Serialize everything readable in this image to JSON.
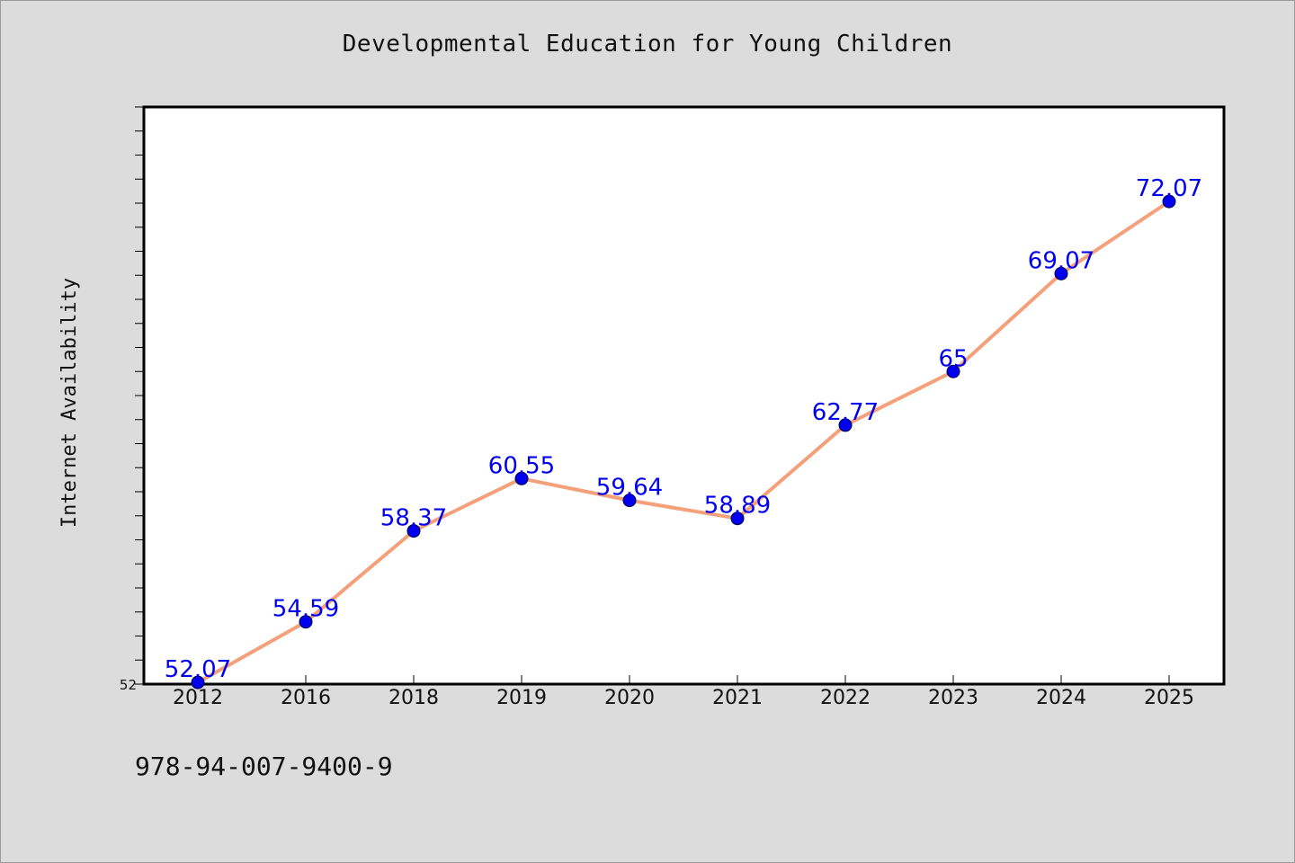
{
  "figure": {
    "isbn": "978-94-007-9400-9"
  },
  "chart_data": {
    "type": "line",
    "title": "Developmental Education for Young Children",
    "xlabel": "",
    "ylabel": "Internet Availability",
    "categories": [
      "2012",
      "2016",
      "2018",
      "2019",
      "2020",
      "2021",
      "2022",
      "2023",
      "2024",
      "2025"
    ],
    "series": [
      {
        "values": [
          52.07,
          54.59,
          58.37,
          60.55,
          59.64,
          58.89,
          62.77,
          65,
          69.07,
          72.07
        ],
        "labels": [
          "52.07",
          "54.59",
          "58.37",
          "60.55",
          "59.64",
          "58.89",
          "62.77",
          "65",
          "69.07",
          "72.07"
        ],
        "line_color": "#f4a07a",
        "marker_color": "#0000ee",
        "label_color": "#0000ee"
      }
    ],
    "y_tick_labels": [
      "52"
    ],
    "ylim": [
      52,
      76
    ],
    "grid": false,
    "legend": "none"
  }
}
